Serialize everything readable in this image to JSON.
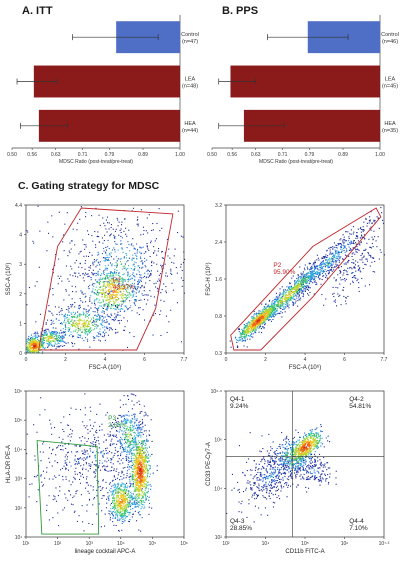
{
  "figure": {
    "panel_a_title": "A.  ITT",
    "panel_b_title": "B.  PPS",
    "panel_c_title": "C. Gating strategy for MDSC"
  },
  "colors": {
    "control_bar": "#4f6fc6",
    "treat_bar": "#8b1a1a",
    "gate_red": "#c0272d",
    "gate_green": "#2e9a3a"
  },
  "chart_data": [
    {
      "type": "bar",
      "orientation": "horizontal",
      "title": "A.  ITT",
      "xlabel": "MDSC Ratio (post-treat/pre-treat)",
      "xlim": [
        0.5,
        1.0
      ],
      "xticks": [
        "0.50",
        "0.56",
        "0.63",
        "0.71",
        "0.79",
        "0.89",
        "1.00"
      ],
      "xtick_values": [
        0.5,
        0.56,
        0.63,
        0.71,
        0.79,
        0.89,
        1.0
      ],
      "categories": [
        "Control",
        "LEA",
        "HEA"
      ],
      "n_labels": [
        "(n=47)",
        "(n=48)",
        "(n=44)"
      ],
      "values": [
        0.81,
        0.565,
        0.58
      ],
      "err_low": [
        0.68,
        0.515,
        0.525
      ],
      "err_high": [
        0.935,
        0.635,
        0.665
      ]
    },
    {
      "type": "bar",
      "orientation": "horizontal",
      "title": "B.  PPS",
      "xlabel": "MDSC Ratio (post-treat/pre-treat)",
      "xlim": [
        0.5,
        1.0
      ],
      "xticks": [
        "0.50",
        "0.56",
        "0.63",
        "0.71",
        "0.79",
        "0.89",
        "1.00"
      ],
      "xtick_values": [
        0.5,
        0.56,
        0.63,
        0.71,
        0.79,
        0.89,
        1.0
      ],
      "categories": [
        "Control",
        "LEA",
        "HEA"
      ],
      "n_labels": [
        "(n=46)",
        "(n=45)",
        "(n=35)"
      ],
      "values": [
        0.785,
        0.555,
        0.595
      ],
      "err_low": [
        0.665,
        0.52,
        0.52
      ],
      "err_high": [
        0.905,
        0.63,
        0.715
      ]
    },
    {
      "type": "scatter",
      "title": "FSC-A vs SSC-A",
      "xlabel": "FSC-A (10⁶)",
      "ylabel": "SSC-A (10⁶)",
      "xticks": [
        "0",
        "2",
        "4",
        "6",
        "7.7"
      ],
      "yticks": [
        "0",
        "1",
        "2",
        "3",
        "4",
        "4.4"
      ],
      "gate_name": "P1",
      "gate_percent": "40.37%"
    },
    {
      "type": "scatter",
      "title": "FSC-A vs FSC-H",
      "xlabel": "FSC-A (10⁶)",
      "ylabel": "FSC-H (10⁶)",
      "xticks": [
        "0",
        "2",
        "4",
        "6",
        "7.7"
      ],
      "yticks": [
        "0.3",
        "0.8",
        "1.6",
        "2.4",
        "3.2"
      ],
      "gate_name": "P2",
      "gate_percent": "95.90%"
    },
    {
      "type": "scatter",
      "title": "lineage cocktail vs HLA-DR",
      "xlabel": "lineage cocktail  APC-A",
      "ylabel": "HLA-DR  PE-A",
      "xticks": [
        "10¹",
        "10²",
        "10³",
        "10⁴",
        "10⁵",
        "10⁶"
      ],
      "yticks": [
        "10¹",
        "10²",
        "10³",
        "10⁴",
        "10⁵",
        "10⁶"
      ],
      "gate_name": "P3",
      "gate_percent": "2.63%"
    },
    {
      "type": "scatter",
      "title": "CD11b vs CD33",
      "xlabel": "CD11b  FITC-A",
      "ylabel": "CD33  PE-Cy7-A",
      "xticks": [
        "10²",
        "10⁴",
        "10⁵",
        "10⁶",
        "10⁷·³"
      ],
      "yticks": [
        "10²",
        "10⁴",
        "10⁶",
        "10⁶·⁶"
      ],
      "quadrants": [
        {
          "name": "Q4-1",
          "percent": "9.24%"
        },
        {
          "name": "Q4-2",
          "percent": "54.81%"
        },
        {
          "name": "Q4-3",
          "percent": "28.85%"
        },
        {
          "name": "Q4-4",
          "percent": "7.10%"
        }
      ]
    }
  ]
}
